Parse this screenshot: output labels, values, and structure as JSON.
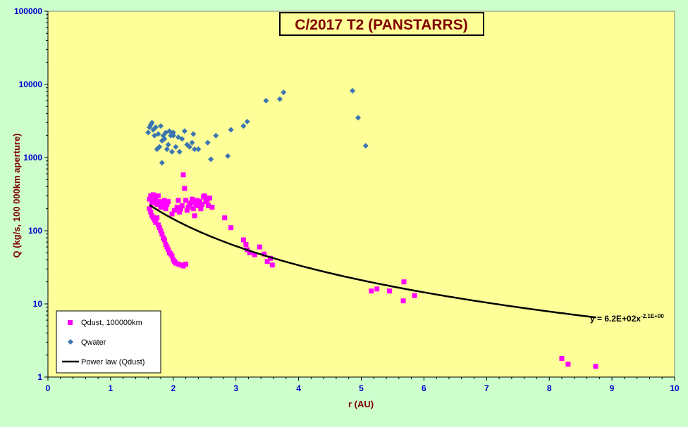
{
  "chart_data": {
    "type": "scatter",
    "title": "C/2017 T2 (PANSTARRS)",
    "xlabel": "r (AU)",
    "ylabel": "Q (kg/s, 100 000km aperture)",
    "xlim": [
      0,
      10
    ],
    "ylim": [
      1,
      100000
    ],
    "yscale": "log",
    "grid": false,
    "legend_position": "bottom-left",
    "x_ticks": [
      "0",
      "1",
      "2",
      "3",
      "4",
      "5",
      "6",
      "7",
      "8",
      "9",
      "10"
    ],
    "y_ticks": [
      "1",
      "10",
      "100",
      "1000",
      "10000",
      "100000"
    ],
    "colors": {
      "plot_bg": "#ffff99",
      "page_bg": "#ccffcc",
      "title_color": "#800000",
      "axis_tick_label_color": "#0000cc",
      "axis_title_color": "#800000",
      "qdust": "#ff00ff",
      "qwater": "#3a75b0",
      "fit": "#000000"
    },
    "series": [
      {
        "name": "Qdust, 100000km",
        "marker": "square",
        "points": [
          [
            1.62,
            270
          ],
          [
            1.64,
            300
          ],
          [
            1.66,
            240
          ],
          [
            1.68,
            310
          ],
          [
            1.7,
            260
          ],
          [
            1.72,
            280
          ],
          [
            1.74,
            230
          ],
          [
            1.76,
            300
          ],
          [
            1.78,
            250
          ],
          [
            1.8,
            210
          ],
          [
            1.82,
            240
          ],
          [
            1.84,
            220
          ],
          [
            1.86,
            260
          ],
          [
            1.88,
            200
          ],
          [
            1.9,
            230
          ],
          [
            1.92,
            250
          ],
          [
            1.62,
            200
          ],
          [
            1.64,
            180
          ],
          [
            1.66,
            160
          ],
          [
            1.68,
            150
          ],
          [
            1.7,
            140
          ],
          [
            1.72,
            130
          ],
          [
            1.74,
            150
          ],
          [
            1.76,
            120
          ],
          [
            1.78,
            110
          ],
          [
            1.8,
            100
          ],
          [
            1.82,
            90
          ],
          [
            1.84,
            80
          ],
          [
            1.86,
            75
          ],
          [
            1.88,
            65
          ],
          [
            1.9,
            60
          ],
          [
            1.92,
            55
          ],
          [
            1.94,
            50
          ],
          [
            1.96,
            48
          ],
          [
            1.98,
            45
          ],
          [
            2.0,
            40
          ],
          [
            2.02,
            38
          ],
          [
            2.04,
            36
          ],
          [
            2.08,
            35
          ],
          [
            2.12,
            34
          ],
          [
            2.16,
            33
          ],
          [
            2.2,
            35
          ],
          [
            1.98,
            170
          ],
          [
            2.02,
            190
          ],
          [
            2.06,
            210
          ],
          [
            2.08,
            260
          ],
          [
            2.1,
            180
          ],
          [
            2.12,
            200
          ],
          [
            2.14,
            220
          ],
          [
            2.16,
            580
          ],
          [
            2.18,
            380
          ],
          [
            2.2,
            260
          ],
          [
            2.22,
            190
          ],
          [
            2.24,
            210
          ],
          [
            2.26,
            230
          ],
          [
            2.28,
            240
          ],
          [
            2.3,
            270
          ],
          [
            2.32,
            200
          ],
          [
            2.34,
            250
          ],
          [
            2.36,
            230
          ],
          [
            2.38,
            260
          ],
          [
            2.4,
            220
          ],
          [
            2.42,
            250
          ],
          [
            2.44,
            200
          ],
          [
            2.46,
            230
          ],
          [
            2.48,
            290
          ],
          [
            2.5,
            300
          ],
          [
            2.52,
            250
          ],
          [
            2.54,
            260
          ],
          [
            2.56,
            220
          ],
          [
            2.58,
            280
          ],
          [
            2.62,
            210
          ],
          [
            2.34,
            160
          ],
          [
            2.82,
            150
          ],
          [
            2.92,
            110
          ],
          [
            3.12,
            75
          ],
          [
            3.16,
            65
          ],
          [
            3.18,
            55
          ],
          [
            3.22,
            50
          ],
          [
            3.3,
            47
          ],
          [
            3.38,
            60
          ],
          [
            3.45,
            48
          ],
          [
            3.5,
            38
          ],
          [
            3.55,
            42
          ],
          [
            3.58,
            34
          ],
          [
            5.16,
            15
          ],
          [
            5.25,
            16
          ],
          [
            5.45,
            15
          ],
          [
            5.67,
            11
          ],
          [
            5.68,
            20
          ],
          [
            5.85,
            13
          ],
          [
            8.2,
            1.8
          ],
          [
            8.3,
            1.5
          ],
          [
            8.74,
            1.4
          ]
        ]
      },
      {
        "name": "Qwater",
        "marker": "diamond",
        "points": [
          [
            1.6,
            2200
          ],
          [
            1.62,
            2600
          ],
          [
            1.64,
            2800
          ],
          [
            1.66,
            3000
          ],
          [
            1.68,
            2400
          ],
          [
            1.7,
            2000
          ],
          [
            1.72,
            2600
          ],
          [
            1.74,
            1300
          ],
          [
            1.76,
            2100
          ],
          [
            1.78,
            1400
          ],
          [
            1.8,
            2700
          ],
          [
            1.82,
            1700
          ],
          [
            1.84,
            2000
          ],
          [
            1.86,
            1800
          ],
          [
            1.88,
            2200
          ],
          [
            1.9,
            1300
          ],
          [
            1.92,
            1500
          ],
          [
            1.96,
            2000
          ],
          [
            1.98,
            1200
          ],
          [
            2.0,
            2200
          ],
          [
            2.04,
            1400
          ],
          [
            2.08,
            1900
          ],
          [
            2.1,
            1200
          ],
          [
            2.14,
            1800
          ],
          [
            2.18,
            2300
          ],
          [
            2.22,
            1500
          ],
          [
            2.26,
            1400
          ],
          [
            2.3,
            1600
          ],
          [
            2.32,
            2100
          ],
          [
            2.34,
            1300
          ],
          [
            2.4,
            1300
          ],
          [
            2.55,
            1600
          ],
          [
            2.6,
            950
          ],
          [
            2.68,
            2000
          ],
          [
            2.87,
            1050
          ],
          [
            2.92,
            2400
          ],
          [
            3.12,
            2700
          ],
          [
            3.18,
            3100
          ],
          [
            3.48,
            6000
          ],
          [
            3.7,
            6300
          ],
          [
            3.76,
            7800
          ],
          [
            4.86,
            8200
          ],
          [
            4.95,
            3500
          ],
          [
            5.07,
            1450
          ],
          [
            1.82,
            850
          ],
          [
            2.0,
            2000
          ],
          [
            1.94,
            2300
          ]
        ]
      }
    ],
    "fit": {
      "name": "Power law (Qdust)",
      "equation": "y = 6.2E+02x",
      "exponent": "-2.1E+00",
      "coefficient": 620,
      "power": -2.1,
      "x_range": [
        1.62,
        8.75
      ]
    }
  }
}
